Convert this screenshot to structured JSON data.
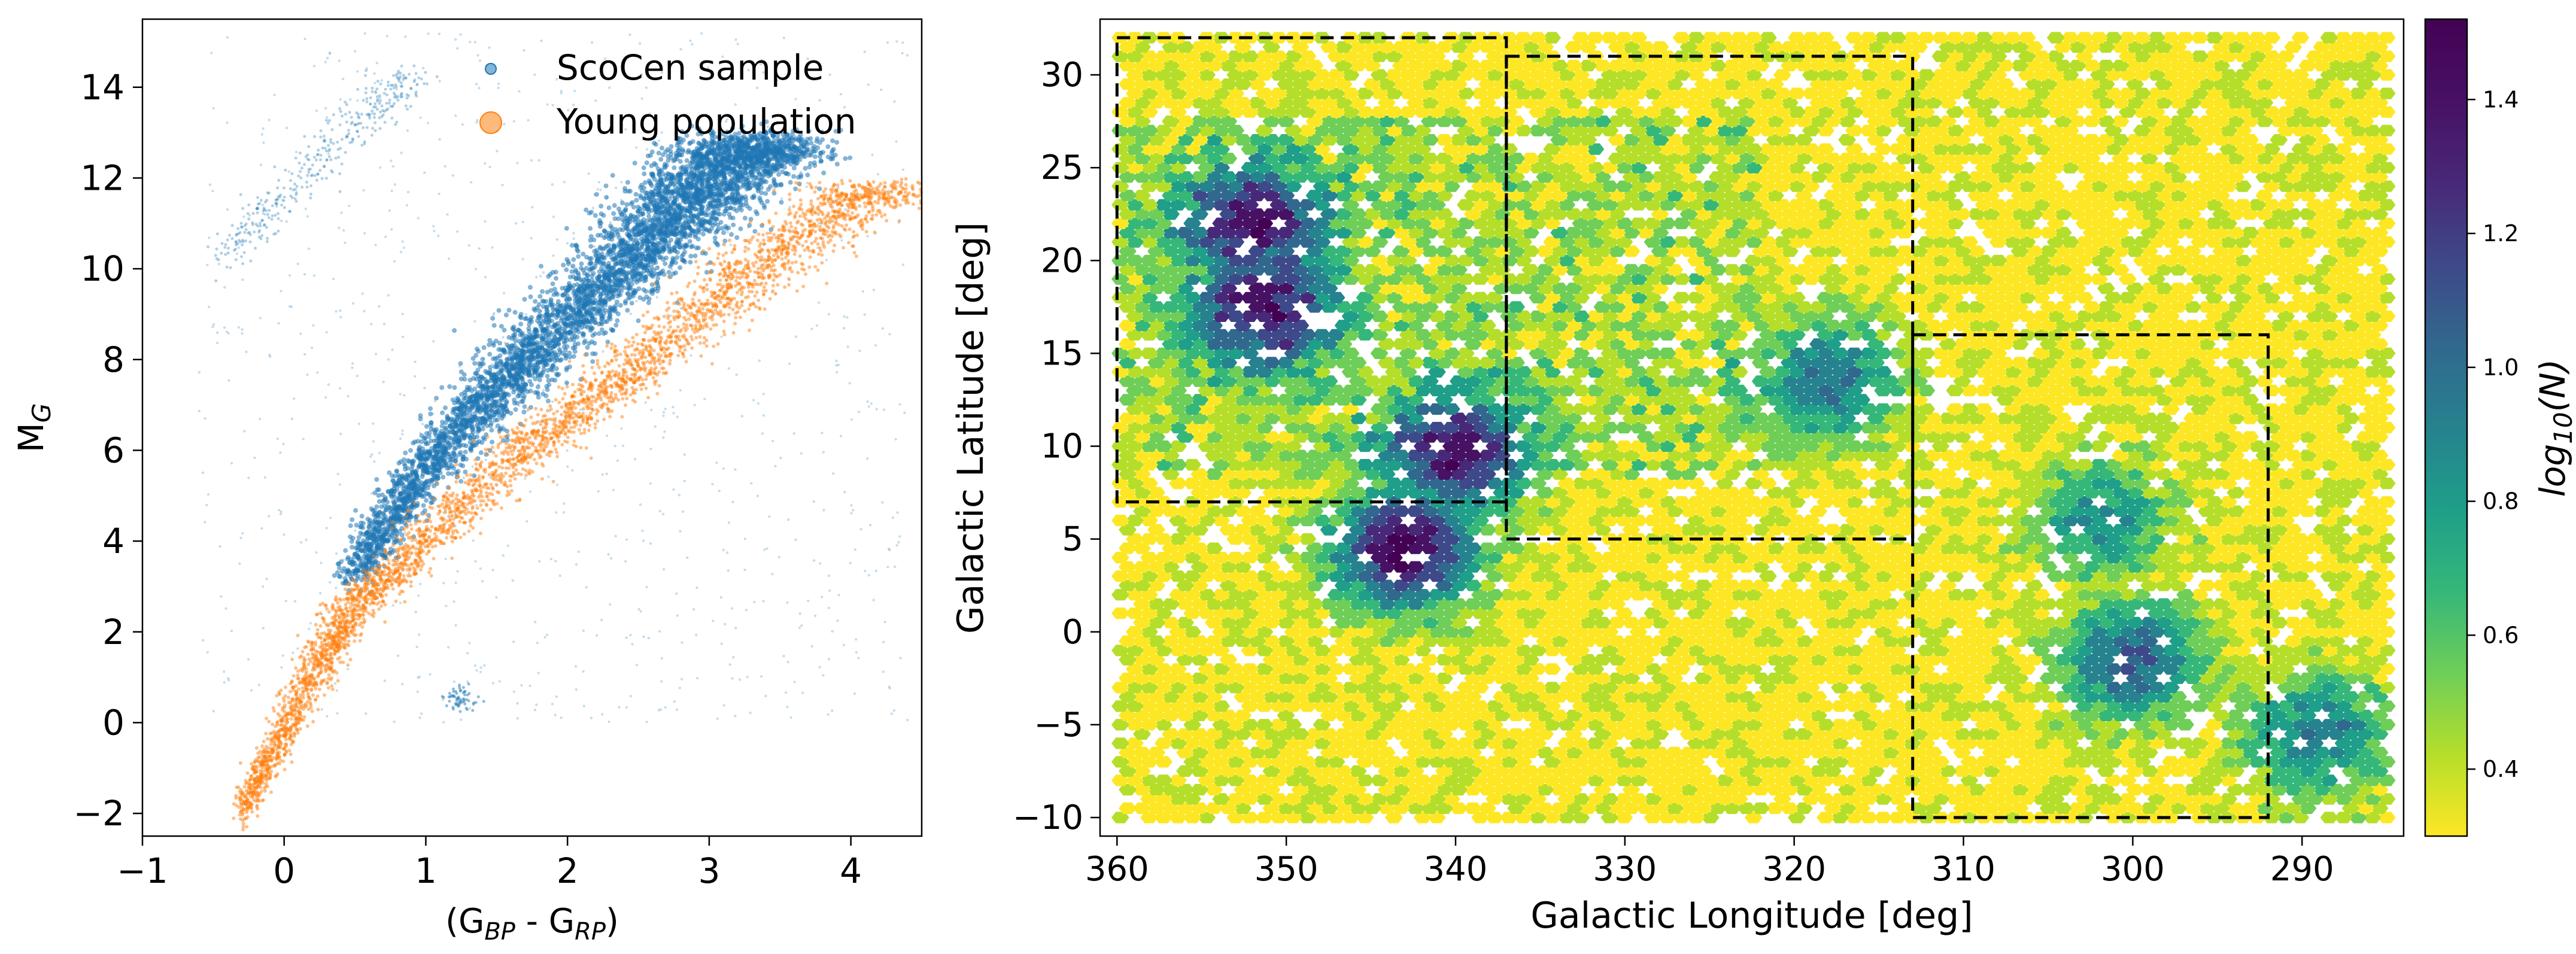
{
  "chart_data": [
    {
      "type": "scatter",
      "xlabel": "(G_BP - G_RP)",
      "xlabel_main": "(G",
      "xlabel_sub1": "BP",
      "xlabel_mid": " - G",
      "xlabel_sub2": "RP",
      "xlabel_end": ")",
      "ylabel": "M_G",
      "ylabel_main": "M",
      "ylabel_sub": "G",
      "xlim": [
        -1,
        4.5
      ],
      "ylim": [
        15.5,
        -2.5
      ],
      "y_inverted": true,
      "x_ticks": [
        -1,
        0,
        1,
        2,
        3,
        4
      ],
      "x_tick_labels": [
        "−1",
        "0",
        "1",
        "2",
        "3",
        "4"
      ],
      "y_ticks": [
        -2,
        0,
        2,
        4,
        6,
        8,
        10,
        12,
        14
      ],
      "y_tick_labels": [
        "−2",
        "0",
        "2",
        "4",
        "6",
        "8",
        "10",
        "12",
        "14"
      ],
      "legend_placement": "top-right",
      "series": [
        {
          "name": "ScoCen sample",
          "color": "#1f77b4",
          "main_sequence": [
            [
              0.45,
              3.1
            ],
            [
              0.7,
              4.2
            ],
            [
              1.0,
              5.6
            ],
            [
              1.4,
              7.0
            ],
            [
              1.8,
              8.2
            ],
            [
              2.2,
              9.5
            ],
            [
              2.6,
              10.7
            ],
            [
              2.9,
              11.6
            ],
            [
              3.2,
              12.4
            ],
            [
              3.4,
              12.8
            ]
          ],
          "white_dwarf_sequence": [
            [
              -0.4,
              10.2
            ],
            [
              -0.2,
              11.0
            ],
            [
              0.1,
              12.0
            ],
            [
              0.4,
              13.0
            ],
            [
              0.7,
              13.6
            ],
            [
              0.9,
              14.2
            ]
          ],
          "giant_clump": [
            [
              1.15,
              0.3
            ],
            [
              1.3,
              0.6
            ],
            [
              1.25,
              0.5
            ]
          ]
        },
        {
          "name": "Young population",
          "color": "#ff7f0e",
          "sequence": [
            [
              -0.3,
              -1.8
            ],
            [
              -0.1,
              -0.6
            ],
            [
              0.1,
              0.6
            ],
            [
              0.3,
              1.8
            ],
            [
              0.5,
              2.8
            ],
            [
              0.8,
              3.6
            ],
            [
              1.2,
              4.8
            ],
            [
              1.6,
              6.0
            ],
            [
              2.0,
              6.9
            ],
            [
              2.4,
              7.8
            ],
            [
              2.8,
              8.8
            ],
            [
              3.2,
              9.8
            ],
            [
              3.6,
              10.8
            ],
            [
              4.0,
              11.6
            ],
            [
              4.2,
              12.0
            ]
          ]
        }
      ]
    },
    {
      "type": "heatmap",
      "xlabel": "Galactic Longitude [deg]",
      "ylabel": "Galactic Latitude [deg]",
      "xlim": [
        361,
        284
      ],
      "ylim": [
        -11,
        33
      ],
      "x_inverted": true,
      "x_ticks": [
        360,
        350,
        340,
        330,
        320,
        310,
        300,
        290
      ],
      "x_tick_labels": [
        "360",
        "350",
        "340",
        "330",
        "320",
        "310",
        "300",
        "290"
      ],
      "y_ticks": [
        -10,
        -5,
        0,
        5,
        10,
        15,
        20,
        25,
        30
      ],
      "y_tick_labels": [
        "−10",
        "−5",
        "0",
        "5",
        "10",
        "15",
        "20",
        "25",
        "30"
      ],
      "hexbin_extent": {
        "l": [
          285,
          360
        ],
        "b": [
          -10,
          32
        ]
      },
      "density_peaks": [
        {
          "l": 352,
          "b": 22,
          "log10N": 1.3
        },
        {
          "l": 351.5,
          "b": 17.5,
          "log10N": 1.3
        },
        {
          "l": 343,
          "b": 4.5,
          "log10N": 1.5
        },
        {
          "l": 340,
          "b": 9.5,
          "log10N": 1.3
        },
        {
          "l": 318,
          "b": 13.5,
          "log10N": 1.0
        },
        {
          "l": 300,
          "b": -1.5,
          "log10N": 1.1
        },
        {
          "l": 289,
          "b": -5.5,
          "log10N": 0.95
        },
        {
          "l": 302,
          "b": 6,
          "log10N": 0.85
        }
      ],
      "regions": [
        {
          "l": [
            360,
            337
          ],
          "b": [
            7,
            32
          ]
        },
        {
          "l": [
            337,
            313
          ],
          "b": [
            5,
            31
          ]
        },
        {
          "l": [
            313,
            292
          ],
          "b": [
            -10,
            16
          ]
        }
      ],
      "colorbar": {
        "label": "log10(N)",
        "label_main": "log",
        "label_sub": "10",
        "label_end": "(N)",
        "colormap": "viridis_r",
        "range": [
          0.3,
          1.52
        ],
        "ticks": [
          0.4,
          0.6,
          0.8,
          1.0,
          1.2,
          1.4
        ],
        "tick_labels": [
          "0.4",
          "0.6",
          "0.8",
          "1.0",
          "1.2",
          "1.4"
        ]
      }
    }
  ]
}
